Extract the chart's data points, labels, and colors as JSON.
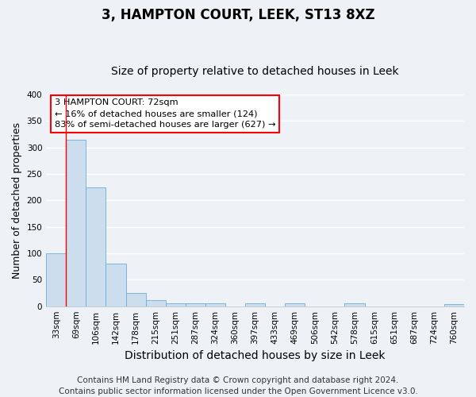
{
  "title": "3, HAMPTON COURT, LEEK, ST13 8XZ",
  "subtitle": "Size of property relative to detached houses in Leek",
  "xlabel": "Distribution of detached houses by size in Leek",
  "ylabel": "Number of detached properties",
  "bar_labels": [
    "33sqm",
    "69sqm",
    "106sqm",
    "142sqm",
    "178sqm",
    "215sqm",
    "251sqm",
    "287sqm",
    "324sqm",
    "360sqm",
    "397sqm",
    "433sqm",
    "469sqm",
    "506sqm",
    "542sqm",
    "578sqm",
    "615sqm",
    "651sqm",
    "687sqm",
    "724sqm",
    "760sqm"
  ],
  "bar_values": [
    100,
    315,
    225,
    80,
    25,
    12,
    5,
    5,
    5,
    0,
    5,
    0,
    5,
    0,
    0,
    5,
    0,
    0,
    0,
    0,
    4
  ],
  "bar_color": "#ccdded",
  "bar_edgecolor": "#6aaed6",
  "ylim": [
    0,
    400
  ],
  "yticks": [
    0,
    50,
    100,
    150,
    200,
    250,
    300,
    350,
    400
  ],
  "red_line_x": 0.5,
  "annotation_title": "3 HAMPTON COURT: 72sqm",
  "annotation_line1": "← 16% of detached houses are smaller (124)",
  "annotation_line2": "83% of semi-detached houses are larger (627) →",
  "footer_line1": "Contains HM Land Registry data © Crown copyright and database right 2024.",
  "footer_line2": "Contains public sector information licensed under the Open Government Licence v3.0.",
  "bg_color": "#eef2f7",
  "plot_bg_color": "#eef2f7",
  "grid_color": "#ffffff",
  "title_fontsize": 12,
  "subtitle_fontsize": 10,
  "xlabel_fontsize": 10,
  "ylabel_fontsize": 9,
  "footer_fontsize": 7.5,
  "tick_fontsize": 7.5
}
